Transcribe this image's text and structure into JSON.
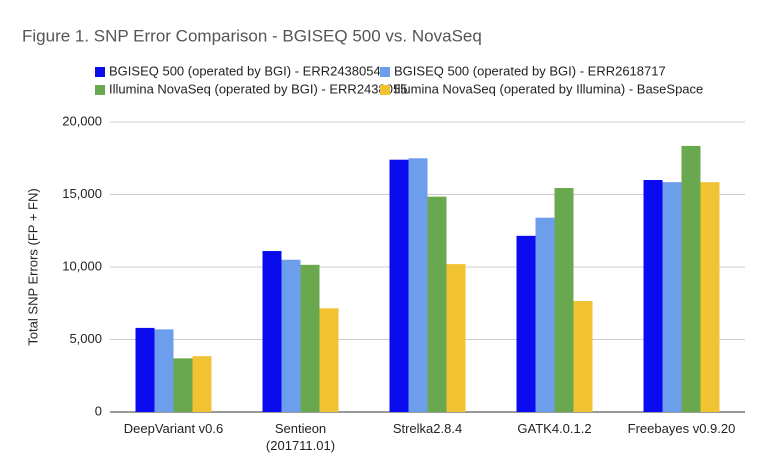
{
  "chart_data": {
    "type": "bar",
    "title": "Figure 1. SNP Error Comparison - BGISEQ 500 vs. NovaSeq",
    "y_label": "Total SNP Errors (FP + FN)",
    "categories": [
      "DeepVariant v0.6",
      "Sentieon (201711.01)",
      "Strelka2.8.4",
      "GATK4.0.1.2",
      "Freebayes v0.9.20"
    ],
    "series": [
      {
        "name": "BGISEQ 500 (operated by BGI) - ERR2438054",
        "color": "#0b0bef",
        "values": [
          5800,
          11100,
          17400,
          12150,
          16000
        ]
      },
      {
        "name": "BGISEQ 500 (operated by BGI) - ERR2618717",
        "color": "#6d9eeb",
        "values": [
          5700,
          10500,
          17500,
          13400,
          15850
        ]
      },
      {
        "name": "Illumina NovaSeq (operated by BGI) - ERR2438055",
        "color": "#6aa84f",
        "values": [
          3700,
          10150,
          14850,
          15450,
          18350
        ]
      },
      {
        "name": "Illumina NovaSeq (operated by Illumina) - BaseSpace",
        "color": "#f1c232",
        "values": [
          3850,
          7150,
          10200,
          7650,
          15850
        ]
      }
    ],
    "ylim": [
      0,
      20000
    ],
    "yticks": [
      0,
      {
        "value": 5000,
        "label": "5,000"
      },
      {
        "value": 10000,
        "label": "10,000"
      },
      {
        "value": 15000,
        "label": "15,000"
      },
      {
        "value": 20000,
        "label": "20,000"
      }
    ],
    "grid": true
  }
}
